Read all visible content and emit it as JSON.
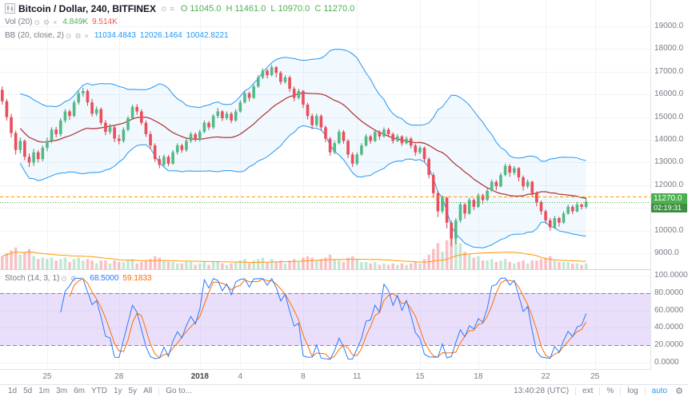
{
  "header": {
    "title": "Bitcoin / Dollar, 240, BITFINEX",
    "ohlc": {
      "o_label": "O",
      "o": "11045.0",
      "h_label": "H",
      "h": "11461.0",
      "l_label": "L",
      "l": "10970.0",
      "c_label": "C",
      "c": "11270.0"
    }
  },
  "legends": {
    "vol": {
      "label": "Vol (20)",
      "v1": "4.849K",
      "v2": "9.514K"
    },
    "bb": {
      "label": "BB (20, close, 2)",
      "v1": "11034.4843",
      "v2": "12026.1464",
      "v3": "10042.8221"
    },
    "stoch": {
      "label": "Stoch (14, 3, 1)",
      "v1": "68.5000",
      "v2": "59.1833"
    }
  },
  "price_tag": {
    "price": "11270.0",
    "countdown": "02:19:31"
  },
  "axes": {
    "price_ticks": [
      "19000.0",
      "18000.0",
      "17000.0",
      "16000.0",
      "15000.0",
      "14000.0",
      "13000.0",
      "12000.0",
      "11000.0",
      "10000.0",
      "9000.0"
    ],
    "stoch_ticks": [
      "100.0000",
      "80.0000",
      "60.0000",
      "40.0000",
      "20.0000",
      "0.0000"
    ],
    "time_labels": [
      {
        "i": 10,
        "t": "25"
      },
      {
        "i": 26,
        "t": "28"
      },
      {
        "i": 44,
        "t": "2018",
        "strong": true
      },
      {
        "i": 53,
        "t": "4"
      },
      {
        "i": 67,
        "t": "8"
      },
      {
        "i": 79,
        "t": "11"
      },
      {
        "i": 93,
        "t": "15"
      },
      {
        "i": 106,
        "t": "18"
      },
      {
        "i": 121,
        "t": "22"
      },
      {
        "i": 132,
        "t": "25"
      }
    ]
  },
  "toolbar": {
    "ranges": [
      "1d",
      "5d",
      "1m",
      "3m",
      "6m",
      "YTD",
      "1y",
      "5y",
      "All"
    ],
    "goto": "Go to...",
    "time": "13:40:28 (UTC)",
    "ext": "ext",
    "percent": "%",
    "log": "log",
    "auto": "auto"
  },
  "colors": {
    "up": "#53b987",
    "down": "#eb4d5c",
    "up_dark": "#3d8f68",
    "down_dark": "#c9404e",
    "bb_band": "#2196f3",
    "bb_basis": "#b23b3b",
    "bb_fill": "rgba(33,150,243,0.06)",
    "vol_up": "rgba(83,185,135,0.35)",
    "vol_down": "rgba(235,77,92,0.35)",
    "vol_ma": "#ff9800",
    "stoch_k": "#2979ff",
    "stoch_d": "#ff6d00",
    "stoch_fill": "rgba(150,95,235,0.20)",
    "stoch_band_line": "#9575cd",
    "price_line": "#4caf50",
    "alert_line": "#ff9800",
    "grid": "#f0f3fa",
    "accent_green": "#4caf50",
    "accent_red": "#ef5350",
    "value_blue": "#2196f3",
    "divider": "#d1d4dc"
  },
  "chart_data": {
    "type": "candlestick",
    "title": "Bitcoin / Dollar, 240, BITFINEX",
    "symbol": "Bitcoin / Dollar",
    "interval": "240",
    "exchange": "BITFINEX",
    "price_range": [
      8300,
      20160
    ],
    "grid_step": 1000,
    "ylim_labeled": [
      9000,
      19000
    ],
    "last_price": 11270,
    "alert_line": 11500,
    "slots": 145,
    "indicators": {
      "bollinger": {
        "length": 20,
        "mult": 2
      },
      "volume_ma": 20,
      "stoch": {
        "k": 14,
        "d": 3,
        "smooth": 1,
        "bands": [
          20,
          80
        ]
      }
    },
    "candles_format": [
      "open",
      "high",
      "low",
      "close",
      "volume_k"
    ],
    "candles": [
      [
        16200,
        16350,
        15550,
        15700,
        9
      ],
      [
        15700,
        15800,
        14850,
        15000,
        11
      ],
      [
        15000,
        15150,
        14100,
        14300,
        13
      ],
      [
        14300,
        14400,
        13350,
        13550,
        15
      ],
      [
        13550,
        14100,
        13400,
        13950,
        10
      ],
      [
        13950,
        14020,
        13100,
        13250,
        12
      ],
      [
        13250,
        13400,
        12800,
        13000,
        14
      ],
      [
        13000,
        13600,
        12850,
        13450,
        9
      ],
      [
        13450,
        13550,
        13000,
        13150,
        7
      ],
      [
        13150,
        13750,
        13050,
        13650,
        8
      ],
      [
        13650,
        14100,
        13500,
        13950,
        7
      ],
      [
        13950,
        14550,
        13850,
        14450,
        8
      ],
      [
        14450,
        14570,
        14100,
        14250,
        6
      ],
      [
        14250,
        14950,
        14150,
        14850,
        7
      ],
      [
        14850,
        15350,
        14750,
        15250,
        8
      ],
      [
        15250,
        15330,
        14870,
        15050,
        5
      ],
      [
        15050,
        15750,
        15000,
        15650,
        7
      ],
      [
        15650,
        16150,
        15550,
        16050,
        8
      ],
      [
        16050,
        16300,
        15900,
        16150,
        6
      ],
      [
        16150,
        16230,
        15500,
        15650,
        7
      ],
      [
        15650,
        15800,
        15030,
        15150,
        6
      ],
      [
        15150,
        15470,
        15050,
        15350,
        4
      ],
      [
        15350,
        15430,
        14650,
        14750,
        6
      ],
      [
        14750,
        14870,
        14200,
        14350,
        6
      ],
      [
        14350,
        14700,
        14250,
        14550,
        4
      ],
      [
        14550,
        14630,
        13900,
        14050,
        6
      ],
      [
        14050,
        14230,
        13800,
        13950,
        5
      ],
      [
        13950,
        14550,
        13870,
        14450,
        5
      ],
      [
        14450,
        15050,
        14370,
        14950,
        6
      ],
      [
        14950,
        15550,
        14900,
        15450,
        7
      ],
      [
        15450,
        15570,
        15100,
        15250,
        4
      ],
      [
        15250,
        15350,
        14650,
        14750,
        5
      ],
      [
        14750,
        14850,
        14130,
        14250,
        6
      ],
      [
        14250,
        14370,
        13600,
        13750,
        7
      ],
      [
        13750,
        13850,
        13030,
        13150,
        9
      ],
      [
        13150,
        13300,
        12750,
        12900,
        8
      ],
      [
        12900,
        13350,
        12830,
        13250,
        6
      ],
      [
        13250,
        13330,
        12850,
        12950,
        5
      ],
      [
        12950,
        13550,
        12900,
        13450,
        5
      ],
      [
        13450,
        13850,
        13350,
        13750,
        4
      ],
      [
        13750,
        13830,
        13430,
        13550,
        4
      ],
      [
        13550,
        14050,
        13470,
        13950,
        5
      ],
      [
        13950,
        14350,
        13870,
        14250,
        5
      ],
      [
        14250,
        14330,
        13900,
        14000,
        3
      ],
      [
        14000,
        14450,
        13930,
        14350,
        4
      ],
      [
        14350,
        14850,
        14300,
        14750,
        5
      ],
      [
        14750,
        14830,
        14430,
        14550,
        3
      ],
      [
        14550,
        15130,
        14470,
        15050,
        5
      ],
      [
        15050,
        15400,
        14950,
        15250,
        5
      ],
      [
        15250,
        15310,
        14830,
        14950,
        4
      ],
      [
        14950,
        15250,
        14870,
        15150,
        3
      ],
      [
        15150,
        15230,
        14730,
        14850,
        4
      ],
      [
        14850,
        15350,
        14800,
        15250,
        5
      ],
      [
        15250,
        15750,
        15200,
        15650,
        6
      ],
      [
        15650,
        16150,
        15600,
        16050,
        7
      ],
      [
        16050,
        16130,
        15700,
        15850,
        4
      ],
      [
        15850,
        16450,
        15800,
        16350,
        6
      ],
      [
        16350,
        16850,
        16300,
        16750,
        7
      ],
      [
        16750,
        17150,
        16670,
        17050,
        8
      ],
      [
        17050,
        17130,
        16700,
        16850,
        5
      ],
      [
        16850,
        17300,
        16800,
        17200,
        7
      ],
      [
        17200,
        17250,
        16750,
        16950,
        5
      ],
      [
        16950,
        17030,
        16430,
        16550,
        6
      ],
      [
        16550,
        16850,
        16470,
        16750,
        4
      ],
      [
        16750,
        16830,
        16100,
        16250,
        6
      ],
      [
        16250,
        16350,
        15700,
        15850,
        7
      ],
      [
        15850,
        16250,
        15770,
        16150,
        5
      ],
      [
        16150,
        16200,
        15400,
        15550,
        8
      ],
      [
        15550,
        15630,
        14900,
        15050,
        9
      ],
      [
        15050,
        15150,
        14470,
        14650,
        8
      ],
      [
        14650,
        15150,
        14570,
        15050,
        6
      ],
      [
        15050,
        15130,
        14400,
        14550,
        7
      ],
      [
        14550,
        14630,
        13900,
        14050,
        8
      ],
      [
        14050,
        14130,
        13300,
        13450,
        10
      ],
      [
        13450,
        13950,
        13370,
        13850,
        7
      ],
      [
        13850,
        14450,
        13800,
        14350,
        6
      ],
      [
        14350,
        14430,
        13830,
        13950,
        5
      ],
      [
        13950,
        14030,
        13200,
        13350,
        8
      ],
      [
        13350,
        13450,
        12800,
        12950,
        9
      ],
      [
        12950,
        13450,
        12870,
        13350,
        7
      ],
      [
        13350,
        13850,
        13300,
        13750,
        5
      ],
      [
        13750,
        14250,
        13700,
        14150,
        5
      ],
      [
        14150,
        14230,
        13830,
        13950,
        4
      ],
      [
        13950,
        14450,
        13900,
        14350,
        5
      ],
      [
        14350,
        14430,
        14000,
        14150,
        3
      ],
      [
        14150,
        14550,
        14100,
        14450,
        4
      ],
      [
        14450,
        14530,
        14130,
        14250,
        3
      ],
      [
        14250,
        14330,
        13830,
        13950,
        4
      ],
      [
        13950,
        14250,
        13900,
        14150,
        3
      ],
      [
        14150,
        14200,
        13730,
        13850,
        4
      ],
      [
        13850,
        14150,
        13800,
        14050,
        3
      ],
      [
        14050,
        14130,
        13630,
        13750,
        4
      ],
      [
        13750,
        13830,
        13300,
        13450,
        5
      ],
      [
        13450,
        13750,
        13370,
        13650,
        4
      ],
      [
        13650,
        13700,
        13000,
        13150,
        7
      ],
      [
        13150,
        13230,
        12300,
        12450,
        10
      ],
      [
        12450,
        12550,
        11450,
        11650,
        14
      ],
      [
        11650,
        11750,
        10600,
        10850,
        18
      ],
      [
        10850,
        11550,
        10750,
        11450,
        12
      ],
      [
        11450,
        11500,
        10100,
        10350,
        20
      ],
      [
        10350,
        10450,
        9300,
        9650,
        30
      ],
      [
        9650,
        10550,
        9400,
        10450,
        26
      ],
      [
        10450,
        11250,
        10350,
        11150,
        18
      ],
      [
        11150,
        11230,
        10530,
        10750,
        12
      ],
      [
        10750,
        11450,
        10700,
        11350,
        10
      ],
      [
        11350,
        11430,
        10900,
        11050,
        8
      ],
      [
        11050,
        11650,
        11000,
        11550,
        9
      ],
      [
        11550,
        11630,
        11170,
        11350,
        6
      ],
      [
        11350,
        11850,
        11300,
        11750,
        6
      ],
      [
        11750,
        12250,
        11700,
        12150,
        7
      ],
      [
        12150,
        12230,
        11770,
        11950,
        5
      ],
      [
        11950,
        12550,
        11900,
        12450,
        6
      ],
      [
        12450,
        12950,
        12400,
        12850,
        7
      ],
      [
        12850,
        12930,
        12370,
        12550,
        5
      ],
      [
        12550,
        12850,
        12450,
        12750,
        4
      ],
      [
        12750,
        12800,
        12170,
        12350,
        5
      ],
      [
        12350,
        12430,
        11770,
        11950,
        6
      ],
      [
        11950,
        12250,
        11870,
        12150,
        4
      ],
      [
        12150,
        12200,
        11480,
        11650,
        6
      ],
      [
        11650,
        11730,
        11070,
        11250,
        6
      ],
      [
        11250,
        11330,
        10700,
        10850,
        7
      ],
      [
        10850,
        10930,
        10300,
        10450,
        8
      ],
      [
        10450,
        10550,
        10000,
        10150,
        9
      ],
      [
        10150,
        10650,
        10070,
        10550,
        6
      ],
      [
        10550,
        10610,
        10170,
        10350,
        5
      ],
      [
        10350,
        10850,
        10300,
        10750,
        5
      ],
      [
        10750,
        11150,
        10700,
        11050,
        5
      ],
      [
        11050,
        11130,
        10730,
        10850,
        4
      ],
      [
        10850,
        11250,
        10800,
        11150,
        4
      ],
      [
        11150,
        11200,
        10930,
        11045,
        3
      ],
      [
        11045,
        11461,
        10970,
        11270,
        4
      ]
    ]
  }
}
